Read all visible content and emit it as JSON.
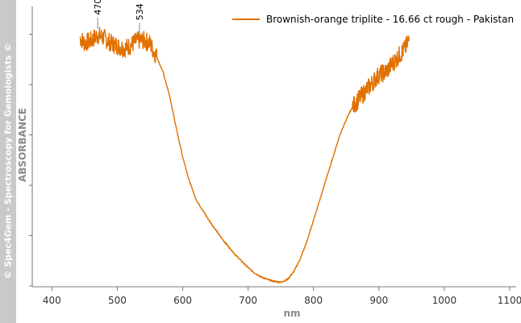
{
  "sidebar_text": "© Spec4Gem - Spectroscopy for Gemologists ©",
  "chart_data": {
    "type": "line",
    "title": "",
    "xlabel": "nm",
    "ylabel": "ABSORBANCE",
    "xlim": [
      370,
      1100
    ],
    "ylim": [
      0,
      1
    ],
    "x_ticks": [
      400,
      500,
      600,
      700,
      800,
      900,
      1000,
      1100
    ],
    "y_ticks_labeled": false,
    "grid": false,
    "legend_position": "top-right",
    "series": [
      {
        "name": "Brownish-orange triplite - 16.66 ct rough - Pakistan",
        "color": "#e07000",
        "x": [
          443,
          450,
          460,
          470,
          480,
          490,
          500,
          510,
          520,
          530,
          540,
          550,
          555,
          560,
          570,
          580,
          590,
          600,
          610,
          620,
          640,
          660,
          680,
          700,
          710,
          720,
          730,
          740,
          750,
          760,
          770,
          780,
          790,
          800,
          810,
          820,
          830,
          840,
          850,
          860,
          870,
          880,
          890,
          900,
          910,
          920,
          930,
          940,
          946
        ],
        "y": [
          0.93,
          0.91,
          0.92,
          0.94,
          0.93,
          0.91,
          0.9,
          0.89,
          0.9,
          0.92,
          0.92,
          0.91,
          0.88,
          0.86,
          0.8,
          0.71,
          0.59,
          0.48,
          0.39,
          0.32,
          0.24,
          0.17,
          0.11,
          0.06,
          0.04,
          0.025,
          0.015,
          0.008,
          0.005,
          0.015,
          0.045,
          0.095,
          0.16,
          0.24,
          0.32,
          0.4,
          0.48,
          0.56,
          0.62,
          0.67,
          0.7,
          0.73,
          0.76,
          0.79,
          0.8,
          0.83,
          0.86,
          0.89,
          0.92
        ],
        "noisy_range": [
          [
            443,
            560
          ],
          [
            860,
            946
          ]
        ]
      }
    ],
    "annotations": [
      {
        "x": 470,
        "label": "470"
      },
      {
        "x": 534,
        "label": "534"
      }
    ]
  }
}
